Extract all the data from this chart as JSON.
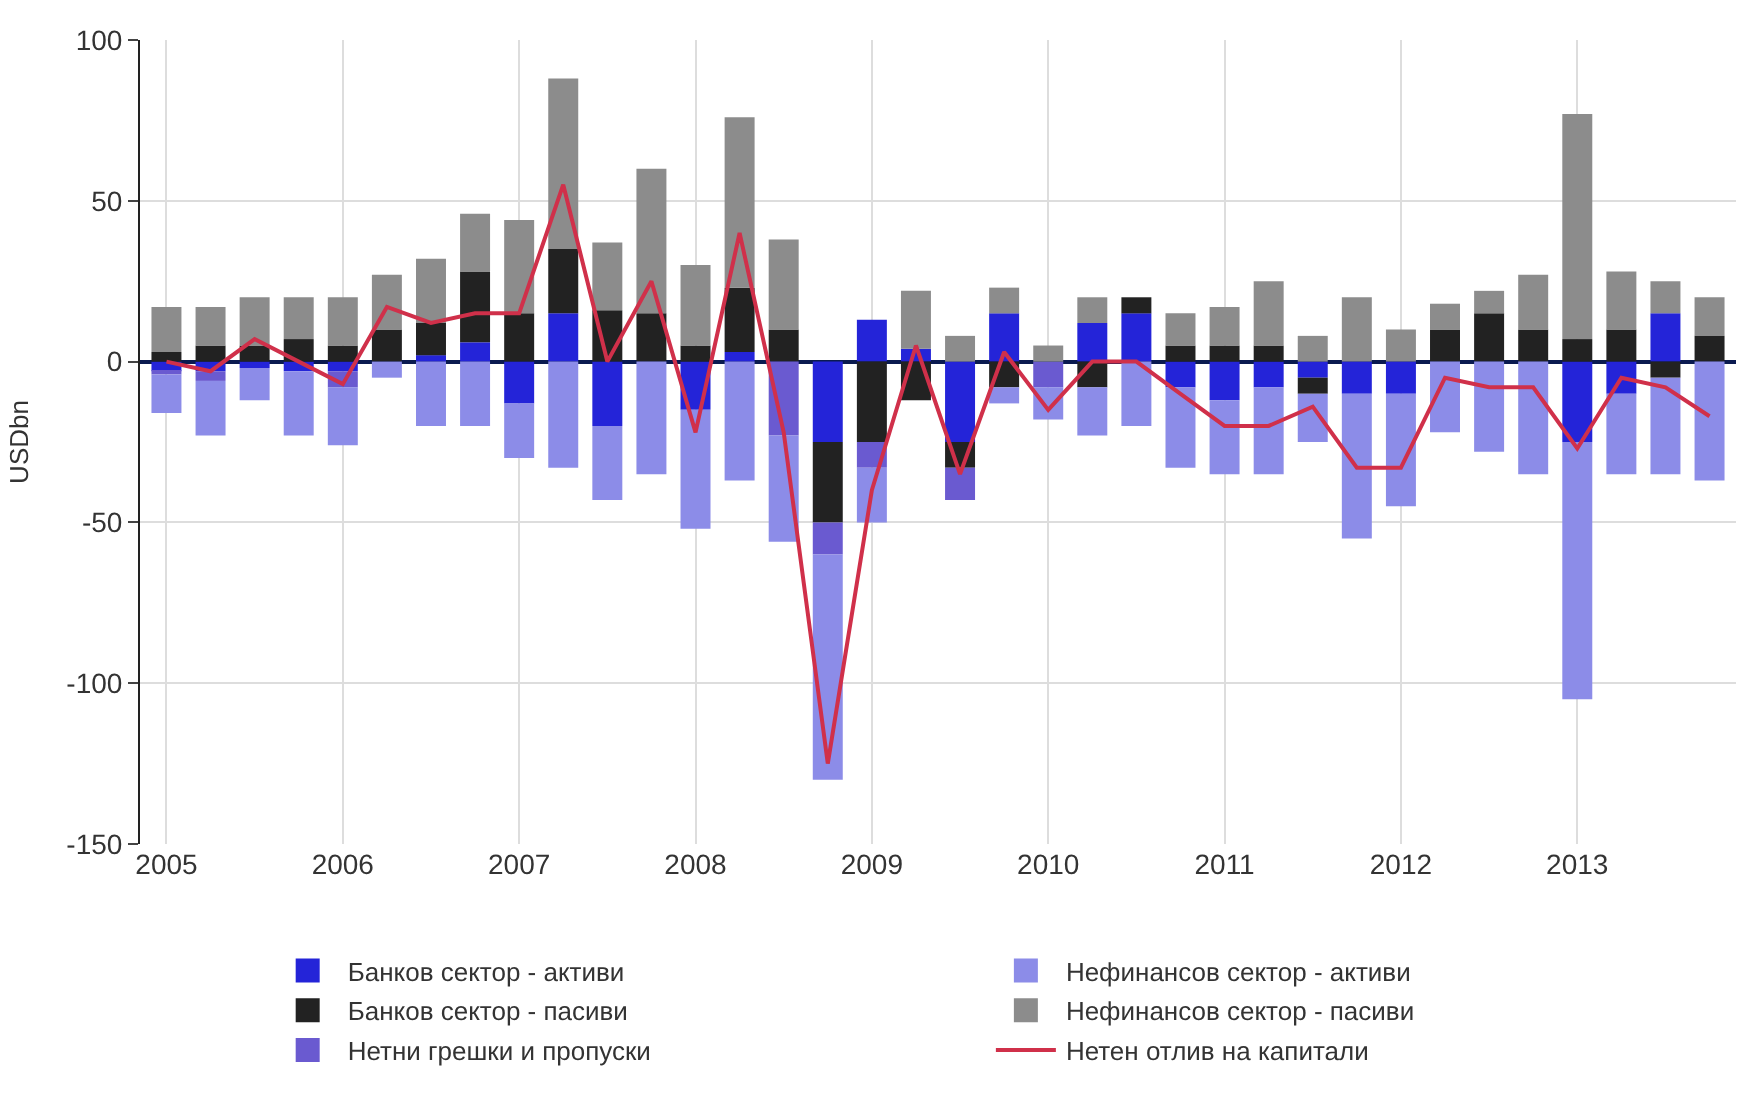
{
  "chart_data": {
    "type": "bar",
    "stacked": true,
    "ylabel": "USDbn",
    "x": [
      2005,
      2005.25,
      2005.5,
      2005.75,
      2006,
      2006.25,
      2006.5,
      2006.75,
      2007,
      2007.25,
      2007.5,
      2007.75,
      2008,
      2008.25,
      2008.5,
      2008.75,
      2009,
      2009.25,
      2009.5,
      2009.75,
      2010,
      2010.25,
      2010.5,
      2010.75,
      2011,
      2011.25,
      2011.5,
      2011.75,
      2012,
      2012.25,
      2012.5,
      2012.75,
      2013,
      2013.25,
      2013.5,
      2013.75
    ],
    "xlim": [
      2004.85,
      2013.9
    ],
    "xticks": [
      2005,
      2006,
      2007,
      2008,
      2009,
      2010,
      2011,
      2012,
      2013
    ],
    "ylim": [
      -150,
      100
    ],
    "yticks": [
      -150,
      -100,
      -50,
      0,
      50,
      100
    ],
    "grid": true,
    "legend": "bottom",
    "series": [
      {
        "name": "Банков сектор - активи",
        "color": "#2424d8",
        "values": [
          -3,
          -3,
          -2,
          -3,
          -3,
          0,
          2,
          6,
          -13,
          15,
          -20,
          0,
          -15,
          3,
          0,
          -25,
          13,
          4,
          -25,
          15,
          0,
          12,
          15,
          -8,
          -12,
          -8,
          -5,
          -10,
          -10,
          0,
          0,
          0,
          -25,
          -10,
          15,
          0
        ]
      },
      {
        "name": "Банков сектор - пасиви",
        "color": "#222222",
        "values": [
          3,
          5,
          5,
          7,
          5,
          10,
          10,
          22,
          15,
          20,
          16,
          15,
          5,
          20,
          10,
          -25,
          -25,
          -12,
          -8,
          -8,
          0,
          -8,
          5,
          5,
          5,
          5,
          -5,
          0,
          0,
          10,
          15,
          10,
          7,
          10,
          -5,
          8
        ]
      },
      {
        "name": "Нетни грешки и пропуски",
        "color": "#6a5ad0",
        "values": [
          -1,
          -3,
          0,
          0,
          -5,
          0,
          0,
          0,
          0,
          0,
          0,
          0,
          0,
          0,
          -23,
          -10,
          -8,
          0,
          -10,
          0,
          -8,
          0,
          0,
          0,
          0,
          0,
          0,
          0,
          0,
          0,
          0,
          0,
          0,
          0,
          0,
          0
        ]
      },
      {
        "name": "Нефинансов сектор - активи",
        "color": "#8c8ce8",
        "values": [
          -12,
          -17,
          -10,
          -20,
          -18,
          -5,
          -20,
          -20,
          -17,
          -33,
          -23,
          -35,
          -37,
          -37,
          -33,
          -70,
          -17,
          0,
          0,
          -5,
          -10,
          -15,
          -20,
          -25,
          -23,
          -27,
          -15,
          -45,
          -35,
          -22,
          -28,
          -35,
          -80,
          -25,
          -30,
          -37
        ]
      },
      {
        "name": "Нефинансов сектор - пасиви",
        "color": "#8c8c8c",
        "values": [
          14,
          12,
          15,
          13,
          15,
          17,
          20,
          18,
          29,
          53,
          21,
          45,
          25,
          53,
          28,
          0,
          0,
          18,
          8,
          8,
          5,
          8,
          0,
          10,
          12,
          20,
          8,
          20,
          10,
          8,
          7,
          17,
          70,
          18,
          10,
          12
        ]
      },
      {
        "name": "Нетен отлив на капитали",
        "type": "line",
        "color": "#d0304a",
        "values": [
          0,
          -3,
          7,
          0,
          -7,
          17,
          12,
          15,
          15,
          55,
          0,
          25,
          -22,
          40,
          -22,
          -125,
          -40,
          5,
          -35,
          3,
          -15,
          0,
          0,
          -10,
          -20,
          -20,
          -14,
          -33,
          -33,
          -5,
          -8,
          -8,
          -27,
          -5,
          -8,
          -17
        ]
      }
    ]
  }
}
